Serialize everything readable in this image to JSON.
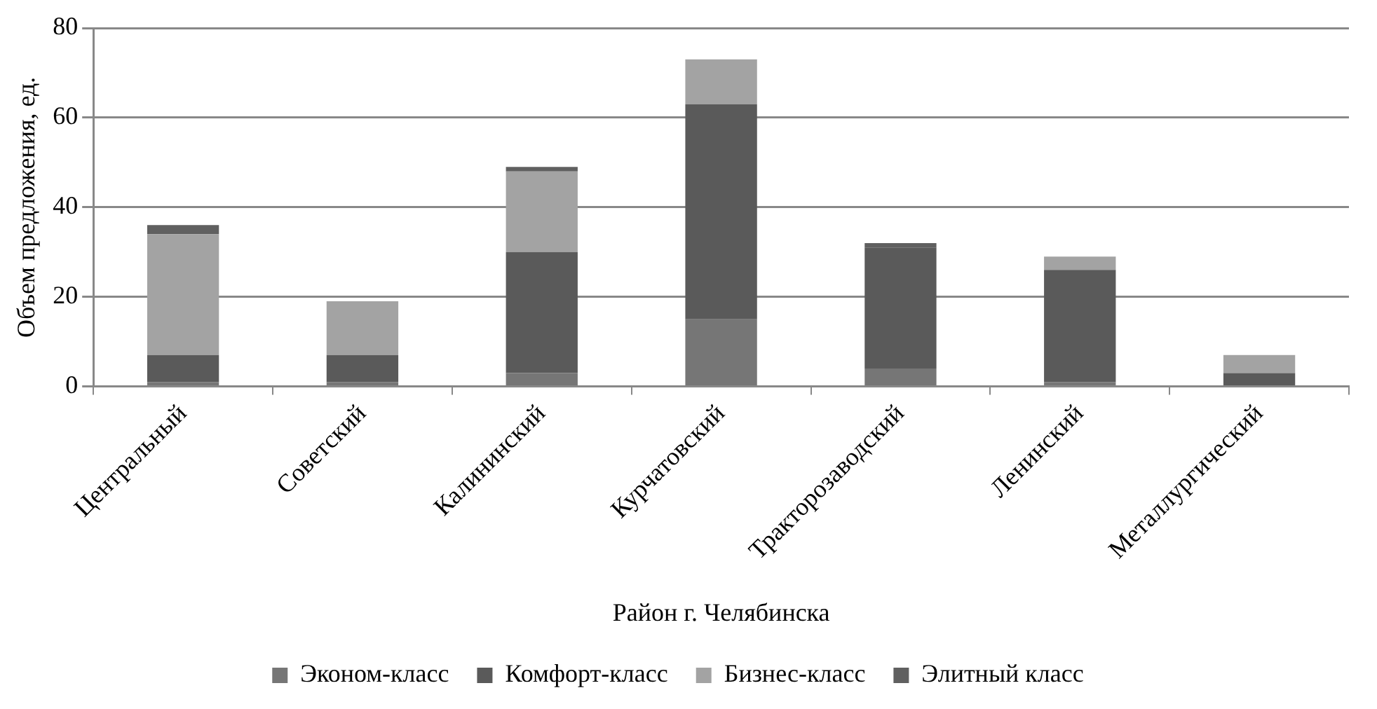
{
  "chart_data": {
    "type": "bar",
    "stacked": true,
    "xlabel": "Район г. Челябинска",
    "ylabel": "Объем предложения, ед.",
    "categories": [
      "Центральный",
      "Советский",
      "Калининский",
      "Курчатовский",
      "Тракторозаводский",
      "Ленинский",
      "Металлургический"
    ],
    "series": [
      {
        "name": "Эконом-класс",
        "color": "#767676",
        "values": [
          1,
          1,
          3,
          15,
          4,
          1,
          0
        ]
      },
      {
        "name": "Комфорт-класс",
        "color": "#5a5a5a",
        "values": [
          6,
          6,
          27,
          48,
          27,
          25,
          3
        ]
      },
      {
        "name": "Бизнес-класс",
        "color": "#a3a3a3",
        "values": [
          27,
          12,
          18,
          10,
          0,
          3,
          4
        ]
      },
      {
        "name": "Элитный класс",
        "color": "#606060",
        "values": [
          2,
          0,
          1,
          0,
          1,
          0,
          0
        ]
      }
    ],
    "ylim": [
      0,
      80
    ],
    "yticks": [
      0,
      20,
      40,
      60,
      80
    ],
    "grid": "y",
    "legend": "bottom"
  }
}
